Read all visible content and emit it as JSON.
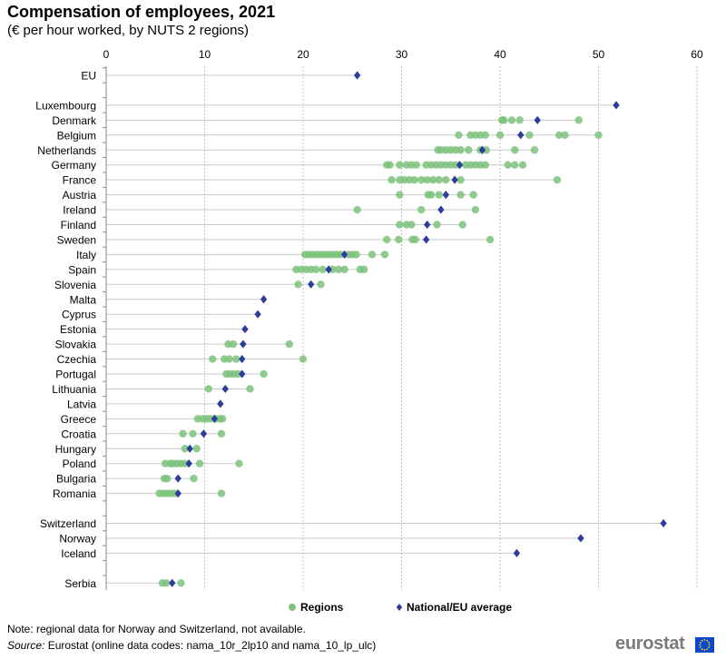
{
  "title": "Compensation of employees, 2021",
  "subtitle": "(€ per hour worked, by NUTS  2 regions)",
  "note": "Note: regional data for Norway and Switzerland, not available.",
  "source": {
    "label": "Source:",
    "text": " Eurostat (online data codes: nama_10r_2lp10 and nama_10_lp_ulc)"
  },
  "logo_text": "eurostat",
  "colors": {
    "regions": "#7dc27d",
    "regions_dark": "#3e9a3e",
    "national": "#2e3d9a",
    "gridline": "#bfbfbf",
    "rowline": "#c9c9c9",
    "logo_flag": "#0e47cb"
  },
  "chart_data": {
    "type": "scatter",
    "title": "Compensation of employees, 2021",
    "subtitle": "(€ per hour worked, by NUTS  2 regions)",
    "xlim": [
      0,
      60
    ],
    "x_ticks": [
      "0",
      "10",
      "20",
      "30",
      "40",
      "50",
      "60"
    ],
    "grid": "vertical dotted",
    "legend_position": "bottom",
    "legend": [
      {
        "name": "Regions",
        "marker": "circle"
      },
      {
        "name": "National/EU average",
        "marker": "diamond"
      }
    ],
    "categories": [
      {
        "name": "EU",
        "national": 25.5,
        "regions": []
      },
      {
        "name": "",
        "gap": true
      },
      {
        "name": "Luxembourg",
        "national": 51.8,
        "regions": []
      },
      {
        "name": "Denmark",
        "national": 43.8,
        "regions": [
          40.2,
          40.4,
          41.2,
          42.0,
          48.0
        ]
      },
      {
        "name": "Belgium",
        "national": 42.1,
        "regions": [
          35.8,
          37.0,
          37.5,
          38.0,
          38.5,
          40.0,
          43.0,
          46.0,
          46.6,
          50.0
        ]
      },
      {
        "name": "Netherlands",
        "national": 38.2,
        "regions": [
          33.7,
          34.0,
          34.5,
          35.0,
          35.5,
          36.0,
          36.8,
          38.0,
          38.6,
          41.5,
          43.5
        ]
      },
      {
        "name": "Germany",
        "national": 35.9,
        "regions": [
          28.5,
          28.8,
          29.8,
          30.5,
          31.0,
          31.5,
          32.5,
          33.0,
          33.5,
          34.0,
          34.5,
          35.0,
          35.5,
          36.5,
          37.0,
          37.5,
          38.0,
          38.5,
          40.8,
          41.5,
          42.3
        ]
      },
      {
        "name": "France",
        "national": 35.4,
        "regions": [
          29.0,
          29.8,
          30.3,
          30.8,
          31.3,
          32.0,
          32.6,
          33.2,
          33.8,
          34.5,
          36.0,
          45.8
        ]
      },
      {
        "name": "Austria",
        "national": 34.5,
        "regions": [
          29.8,
          32.7,
          33.0,
          33.8,
          36.0,
          37.3
        ]
      },
      {
        "name": "Ireland",
        "national": 34.0,
        "regions": [
          25.5,
          32.0,
          37.5
        ]
      },
      {
        "name": "Finland",
        "national": 32.6,
        "regions": [
          29.8,
          30.5,
          31.0,
          33.6,
          36.2
        ]
      },
      {
        "name": "Sweden",
        "national": 32.5,
        "regions": [
          28.5,
          29.7,
          31.1,
          31.4,
          39.0
        ]
      },
      {
        "name": "Italy",
        "national": 24.2,
        "regions": [
          20.2,
          20.6,
          21.0,
          21.4,
          21.8,
          22.2,
          22.6,
          23.0,
          23.4,
          23.8,
          24.6,
          25.0,
          25.4,
          27.0,
          28.3
        ]
      },
      {
        "name": "Spain",
        "national": 22.6,
        "regions": [
          19.3,
          19.8,
          20.3,
          20.8,
          21.3,
          22.0,
          23.0,
          23.6,
          24.2,
          25.8,
          26.2
        ]
      },
      {
        "name": "Slovenia",
        "national": 20.8,
        "regions": [
          19.5,
          21.8
        ]
      },
      {
        "name": "Malta",
        "national": 16.0,
        "regions": []
      },
      {
        "name": "Cyprus",
        "national": 15.4,
        "regions": []
      },
      {
        "name": "Estonia",
        "national": 14.1,
        "regions": []
      },
      {
        "name": "Slovakia",
        "national": 13.9,
        "regions": [
          12.4,
          12.9,
          18.6
        ]
      },
      {
        "name": "Czechia",
        "national": 13.8,
        "regions": [
          10.8,
          12.0,
          12.5,
          13.2,
          20.0
        ]
      },
      {
        "name": "Portugal",
        "national": 13.8,
        "regions": [
          12.2,
          12.6,
          13.0,
          13.4,
          16.0
        ]
      },
      {
        "name": "Lithuania",
        "national": 12.1,
        "regions": [
          10.4,
          14.6
        ]
      },
      {
        "name": "Latvia",
        "national": 11.6,
        "regions": []
      },
      {
        "name": "Greece",
        "national": 11.0,
        "regions": [
          9.3,
          9.8,
          10.2,
          10.6,
          11.2,
          11.6,
          11.8
        ]
      },
      {
        "name": "Croatia",
        "national": 9.9,
        "regions": [
          7.8,
          8.8,
          11.7
        ]
      },
      {
        "name": "Hungary",
        "national": 8.5,
        "regions": [
          8.0,
          9.2
        ]
      },
      {
        "name": "Poland",
        "national": 8.4,
        "regions": [
          6.0,
          6.5,
          6.8,
          7.2,
          7.6,
          8.0,
          9.5,
          13.5
        ]
      },
      {
        "name": "Bulgaria",
        "national": 7.3,
        "regions": [
          5.9,
          6.2,
          8.9
        ]
      },
      {
        "name": "Romania",
        "national": 7.3,
        "regions": [
          5.4,
          5.8,
          6.2,
          6.6,
          7.0,
          11.7
        ]
      },
      {
        "name": "",
        "gap": true
      },
      {
        "name": "Switzerland",
        "national": 56.6,
        "regions": []
      },
      {
        "name": "Norway",
        "national": 48.2,
        "regions": []
      },
      {
        "name": "Iceland",
        "national": 41.7,
        "regions": []
      },
      {
        "name": "",
        "gap": true
      },
      {
        "name": "Serbia",
        "national": 6.7,
        "regions": [
          5.7,
          6.1,
          7.6
        ]
      }
    ]
  }
}
